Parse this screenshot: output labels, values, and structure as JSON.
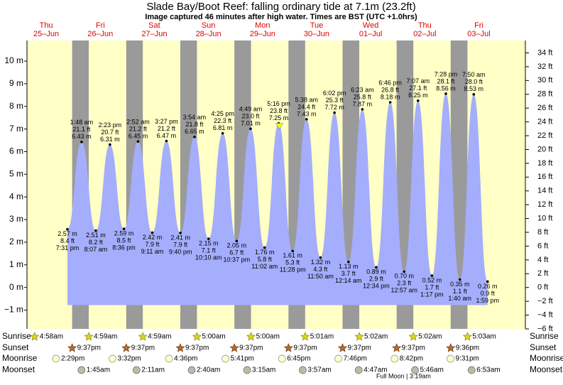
{
  "chart_data": {
    "type": "tide",
    "title": "Slade Bay/Boot Reef: falling  ordinary tide at 7.1m (23.2ft)",
    "subtitle": "Image captured 46 minutes after high water. Times are BST (UTC +1.0hrs)",
    "categories": [
      "Thu",
      "Fri",
      "Sat",
      "Sun",
      "Mon",
      "Tue",
      "Wed",
      "Thu",
      "Fri"
    ],
    "dates": [
      "25–Jun",
      "26–Jun",
      "27–Jun",
      "28–Jun",
      "29–Jun",
      "30–Jun",
      "01–Jul",
      "02–Jul",
      "03–Jul"
    ],
    "x": [
      "7:31 pm",
      "1:48 am",
      "8:07 am",
      "2:23 pm",
      "8:36 pm",
      "2:52 am",
      "9:11 am",
      "3:27 pm",
      "9:40 pm",
      "3:54 am",
      "10:10 am",
      "4:25 pm",
      "10:37 pm",
      "4:49 am",
      "11:02 am",
      "5:16 pm",
      "11:28 pm",
      "5:38 am",
      "11:50 am",
      "6:02 pm",
      "12:14 am",
      "6:23 am",
      "12:34 pm",
      "6:46 pm",
      "12:57 am",
      "7:07 am",
      "1:17 pm",
      "7:28 pm",
      "1:40 am",
      "7:50 am",
      "1:59 pm"
    ],
    "values": [
      2.57,
      6.43,
      2.51,
      6.31,
      2.59,
      6.45,
      2.42,
      6.47,
      2.41,
      6.65,
      2.15,
      6.81,
      2.05,
      7.01,
      1.76,
      7.25,
      1.61,
      7.43,
      1.32,
      7.72,
      1.13,
      7.87,
      0.89,
      8.18,
      0.7,
      8.25,
      0.52,
      8.56,
      0.35,
      8.53,
      0.26
    ],
    "value_labels": [
      "2.57 m",
      "6.43 m",
      "2.51 m",
      "6.31 m",
      "2.59 m",
      "6.45 m",
      "2.42 m",
      "6.47 m",
      "2.41 m",
      "6.65 m",
      "2.15 m",
      "6.81 m",
      "2.05 m",
      "7.01 m",
      "1.76 m",
      "7.25 m",
      "1.61 m",
      "7.43 m",
      "1.32 m",
      "7.72 m",
      "1.13 m",
      "7.87 m",
      "0.89 m",
      "8.18 m",
      "0.70 m",
      "8.25 m",
      "0.52 m",
      "8.56 m",
      "0.35 m",
      "8.53 m",
      "0.26 m"
    ],
    "ft_labels": [
      "8.4 ft",
      "21.1 ft",
      "8.2 ft",
      "20.7 ft",
      "8.5 ft",
      "21.2 ft",
      "7.9 ft",
      "21.2 ft",
      "7.9 ft",
      "21.8 ft",
      "7.1 ft",
      "22.3 ft",
      "6.7 ft",
      "23.0 ft",
      "5.8 ft",
      "23.8 ft",
      "5.3 ft",
      "24.4 ft",
      "4.3 ft",
      "25.3 ft",
      "3.7 ft",
      "25.8 ft",
      "2.9 ft",
      "26.8 ft",
      "2.3 ft",
      "27.1 ft",
      "1.7 ft",
      "28.1 ft",
      "1.1 ft",
      "28.0 ft",
      "0.9 ft"
    ],
    "color": "#a4aefc",
    "ylim": [
      -1.83,
      10.91
    ],
    "yticks": [
      {
        "value": -1,
        "label": "−1 m"
      },
      {
        "value": 0,
        "label": "0 m"
      },
      {
        "value": 1,
        "label": "1 m"
      },
      {
        "value": 2,
        "label": "2 m"
      },
      {
        "value": 3,
        "label": "3 m"
      },
      {
        "value": 4,
        "label": "4 m"
      },
      {
        "value": 5,
        "label": "5 m"
      },
      {
        "value": 6,
        "label": "6 m"
      },
      {
        "value": 7,
        "label": "7 m"
      },
      {
        "value": 8,
        "label": "8 m"
      },
      {
        "value": 9,
        "label": "9 m"
      },
      {
        "value": 10,
        "label": "10 m"
      }
    ],
    "y2lim": [
      -6.0,
      35.8
    ],
    "y2ticks": [
      {
        "value": -6,
        "label": "−6 ft"
      },
      {
        "value": -4,
        "label": "−4 ft"
      },
      {
        "value": -2,
        "label": "−2 ft"
      },
      {
        "value": 0,
        "label": "0 ft"
      },
      {
        "value": 2,
        "label": "2 ft"
      },
      {
        "value": 4,
        "label": "4 ft"
      },
      {
        "value": 6,
        "label": "6 ft"
      },
      {
        "value": 8,
        "label": "8 ft"
      },
      {
        "value": 10,
        "label": "10 ft"
      },
      {
        "value": 12,
        "label": "12 ft"
      },
      {
        "value": 14,
        "label": "14 ft"
      },
      {
        "value": 16,
        "label": "16 ft"
      },
      {
        "value": 18,
        "label": "18 ft"
      },
      {
        "value": 20,
        "label": "20 ft"
      },
      {
        "value": 22,
        "label": "22 ft"
      },
      {
        "value": 24,
        "label": "24 ft"
      },
      {
        "value": 26,
        "label": "26 ft"
      },
      {
        "value": 28,
        "label": "28 ft"
      },
      {
        "value": 30,
        "label": "30 ft"
      },
      {
        "value": 32,
        "label": "32 ft"
      },
      {
        "value": 34,
        "label": "34 ft"
      }
    ]
  },
  "almanac": {
    "rows": [
      {
        "name": "Sunrise",
        "times": [
          "4:58am",
          "4:59am",
          "4:59am",
          "5:00am",
          "5:00am",
          "5:01am",
          "5:02am",
          "5:02am",
          "5:03am"
        ]
      },
      {
        "name": "Sunset",
        "times": [
          "9:37pm",
          "9:37pm",
          "9:37pm",
          "9:37pm",
          "9:37pm",
          "9:37pm",
          "9:37pm",
          "9:36pm",
          null
        ]
      },
      {
        "name": "Moonrise",
        "times": [
          "2:29pm",
          "3:32pm",
          "4:36pm",
          "5:41pm",
          "6:45pm",
          "7:46pm",
          "8:42pm",
          "9:31pm",
          null
        ]
      },
      {
        "name": "Moonset",
        "times": [
          null,
          "1:45am",
          "2:11am",
          "2:40am",
          "3:15am",
          "3:57am",
          "4:47am",
          "5:46am",
          "6:53am"
        ]
      }
    ],
    "note": "Full Moon | 3:19am"
  }
}
